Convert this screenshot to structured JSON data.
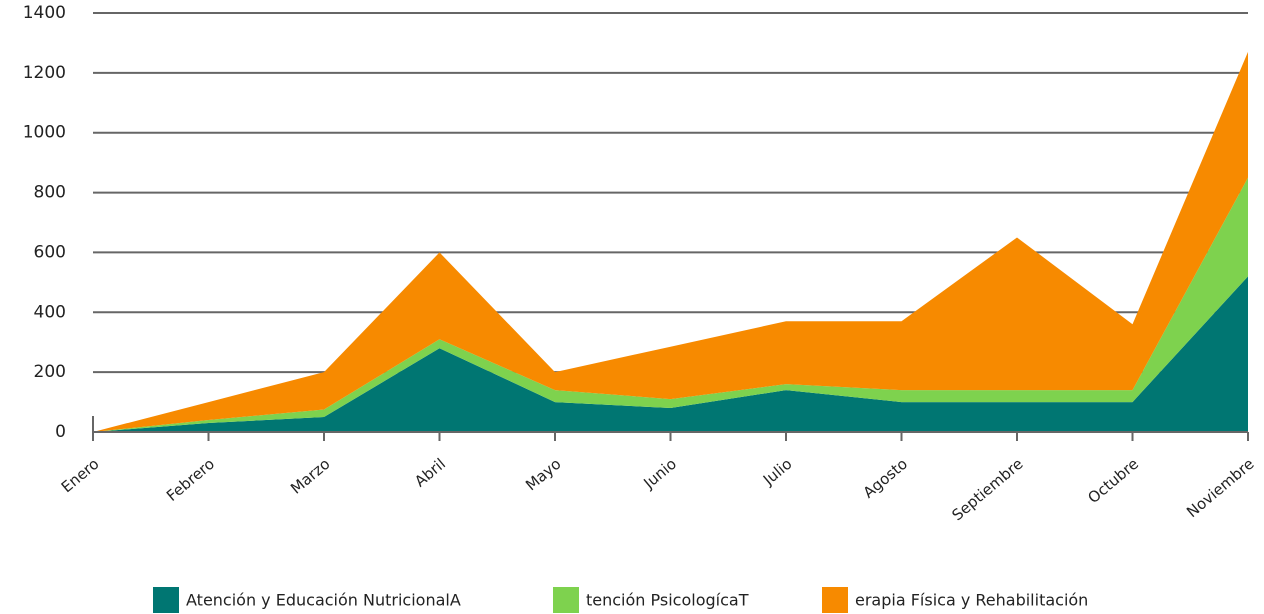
{
  "chart_data": {
    "type": "area",
    "stacked": true,
    "categories": [
      "Enero",
      "Febrero",
      "Marzo",
      "Abril",
      "Mayo",
      "Junio",
      "Julio",
      "Agosto",
      "Septiembre",
      "Octubre",
      "Noviembre"
    ],
    "series": [
      {
        "name": "Atención y Educación NutricionalA",
        "color": "#007672",
        "values": [
          0,
          30,
          50,
          280,
          100,
          80,
          140,
          100,
          100,
          100,
          520
        ]
      },
      {
        "name": "tención PsicologícaT",
        "color": "#7ed24e",
        "values": [
          0,
          10,
          25,
          30,
          40,
          30,
          20,
          40,
          40,
          40,
          330
        ]
      },
      {
        "name": "erapia Física y Rehabilitación",
        "color": "#f78a00",
        "values": [
          0,
          60,
          125,
          290,
          60,
          175,
          210,
          230,
          510,
          220,
          420
        ]
      }
    ],
    "ylim": [
      0,
      1400
    ],
    "yticks": [
      0,
      200,
      400,
      600,
      800,
      1000,
      1200,
      1400
    ],
    "grid": true
  }
}
